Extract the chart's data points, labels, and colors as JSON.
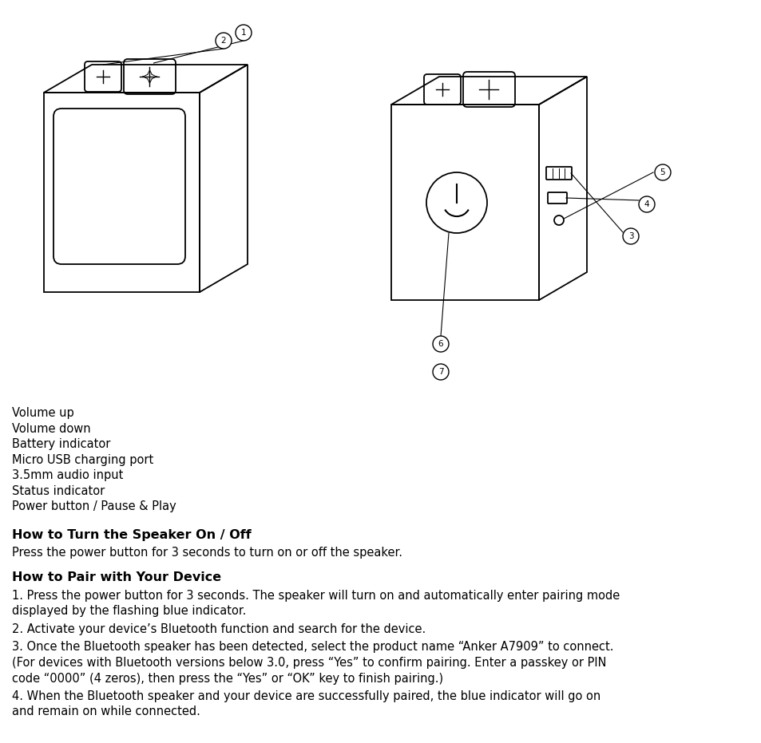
{
  "bg_color": "#ffffff",
  "text_color": "#000000",
  "title_fontsize": 11.5,
  "body_fontsize": 10.5,
  "plain_labels": [
    "Volume up",
    "Volume down",
    "Battery indicator",
    "Micro USB charging port",
    "3.5mm audio input",
    "Status indicator",
    "Power button / Pause & Play"
  ],
  "section1_title": "How to Turn the Speaker On / Off",
  "section1_body": "Press the power button for 3 seconds to turn on or off the speaker.",
  "section2_title": "How to Pair with Your Device",
  "section2_items": [
    "1. Press the power button for 3 seconds. The speaker will turn on and automatically enter pairing mode\ndisplayed by the flashing blue indicator.",
    "2. Activate your device’s Bluetooth function and search for the device.",
    "3. Once the Bluetooth speaker has been detected, select the product name “Anker A7909” to connect.\n(For devices with Bluetooth versions below 3.0, press “Yes” to confirm pairing. Enter a passkey or PIN\ncode “0000” (4 zeros), then press the “Yes” or “OK” key to finish pairing.)",
    "4. When the Bluetooth speaker and your device are successfully paired, the blue indicator will go on\nand remain on while connected."
  ]
}
